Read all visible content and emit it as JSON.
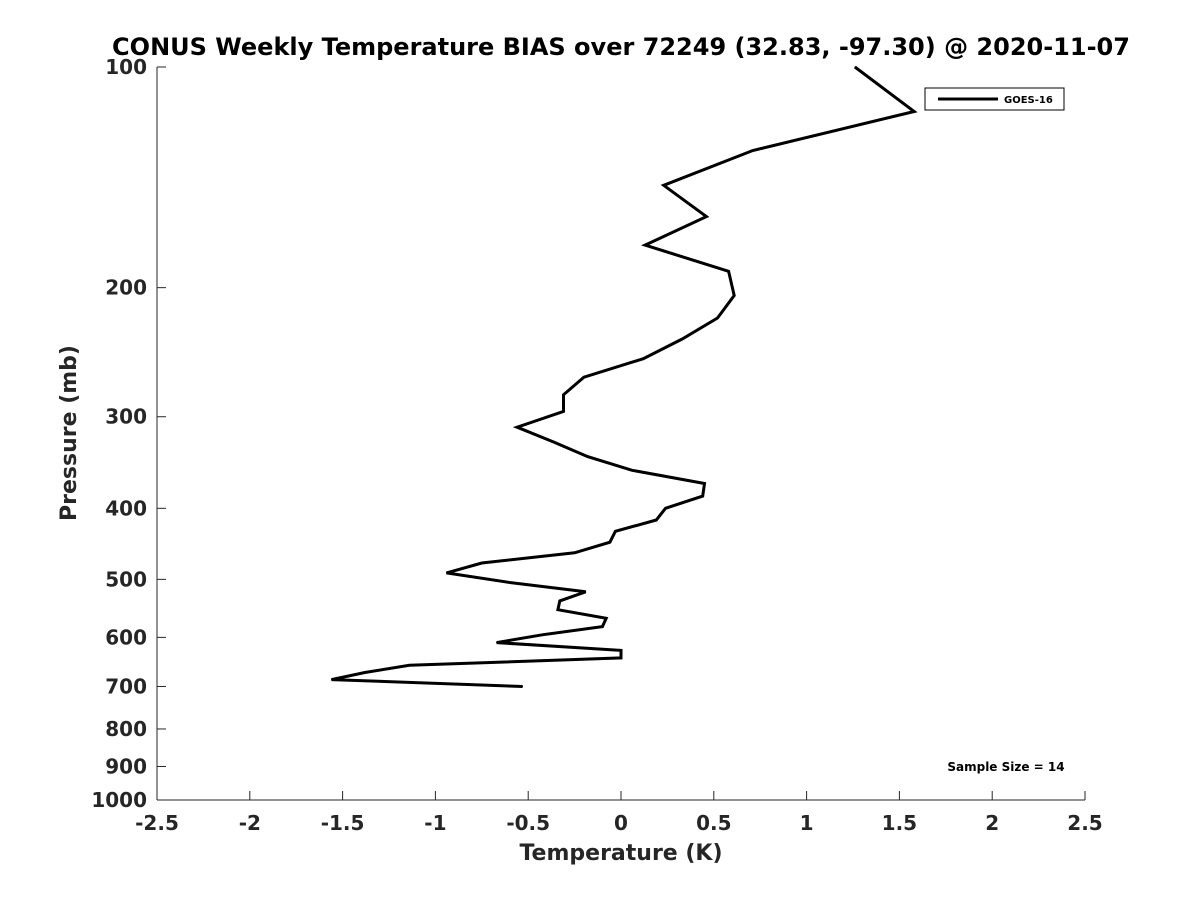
{
  "chart_data": {
    "type": "line",
    "title": "CONUS Weekly Temperature BIAS over 72249 (32.83, -97.30) @ 2020-11-07",
    "xlabel": "Temperature (K)",
    "ylabel": "Pressure (mb)",
    "xlim": [
      -2.5,
      2.5
    ],
    "ylim": [
      100,
      1000
    ],
    "y_scale": "log",
    "y_reversed": true,
    "x_ticks": [
      -2.5,
      -2,
      -1.5,
      -1,
      -0.5,
      0,
      0.5,
      1,
      1.5,
      2,
      2.5
    ],
    "x_tick_labels": [
      "-2.5",
      "-2",
      "-1.5",
      "-1",
      "-0.5",
      "0",
      "0.5",
      "1",
      "1.5",
      "2",
      "2.5"
    ],
    "y_ticks": [
      100,
      200,
      300,
      400,
      500,
      600,
      700,
      800,
      900,
      1000
    ],
    "y_tick_labels": [
      "100",
      "200",
      "300",
      "400",
      "500",
      "600",
      "700",
      "800",
      "900",
      "1000"
    ],
    "grid": false,
    "legend_position": "top-right",
    "series": [
      {
        "name": "GOES-16",
        "color": "#000000",
        "x": [
          1.26,
          1.58,
          0.71,
          0.23,
          0.46,
          0.13,
          0.58,
          0.61,
          0.52,
          0.33,
          0.12,
          -0.2,
          -0.31,
          -0.31,
          -0.56,
          -0.36,
          -0.18,
          0.06,
          0.45,
          0.44,
          0.24,
          0.19,
          -0.03,
          -0.06,
          -0.25,
          -0.75,
          -0.94,
          -0.6,
          -0.19,
          -0.33,
          -0.34,
          -0.08,
          -0.1,
          -0.42,
          -0.67,
          0.0,
          0.0,
          -1.14,
          -1.38,
          -1.56,
          -0.53
        ],
        "y": [
          100,
          115,
          130,
          145,
          160,
          175,
          190,
          205,
          220,
          235,
          250,
          265,
          280,
          295,
          310,
          325,
          340,
          355,
          370,
          385,
          400,
          415,
          430,
          445,
          460,
          475,
          490,
          505,
          520,
          535,
          550,
          565,
          580,
          595,
          610,
          625,
          640,
          655,
          670,
          685,
          700
        ]
      }
    ],
    "annotation": "Sample Size = 14"
  }
}
